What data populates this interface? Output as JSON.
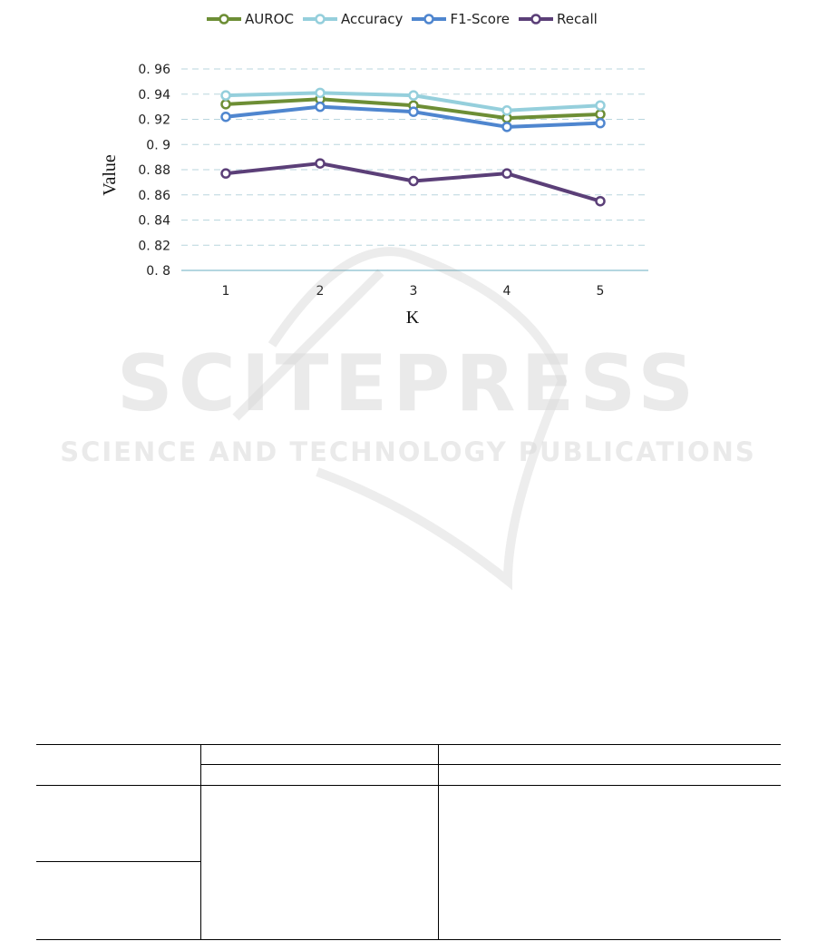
{
  "chart_data": {
    "type": "line",
    "x": [
      1,
      2,
      3,
      4,
      5
    ],
    "xlabel": "K",
    "ylabel": "Value",
    "ylim": [
      0.8,
      0.96
    ],
    "yticks": [
      "0. 8",
      "0. 82",
      "0. 84",
      "0. 86",
      "0. 88",
      "0. 9",
      "0. 92",
      "0. 94",
      "0. 96"
    ],
    "xticks": [
      "1",
      "2",
      "3",
      "4",
      "5"
    ],
    "grid": true,
    "legend_position": "top",
    "series": [
      {
        "name": "AUROC",
        "color": "#6d8e35",
        "values": [
          0.932,
          0.936,
          0.931,
          0.921,
          0.924
        ]
      },
      {
        "name": "Accuracy",
        "color": "#95cfdc",
        "values": [
          0.939,
          0.941,
          0.939,
          0.927,
          0.931
        ]
      },
      {
        "name": "F1-Score",
        "color": "#4f86cf",
        "values": [
          0.922,
          0.93,
          0.926,
          0.914,
          0.917
        ]
      },
      {
        "name": "Recall",
        "color": "#5b3f78",
        "values": [
          0.877,
          0.885,
          0.871,
          0.877,
          0.855
        ]
      }
    ]
  },
  "watermark": {
    "line1": "SCITEPRESS",
    "line2": "SCIENCE AND TECHNOLOGY PUBLICATIONS"
  }
}
